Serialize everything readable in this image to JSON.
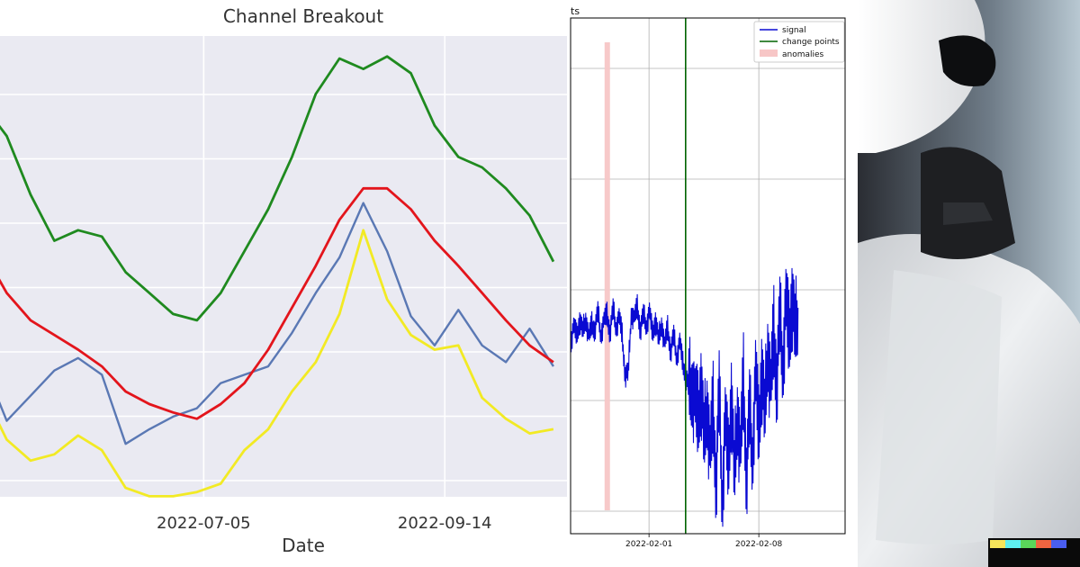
{
  "chart_data": [
    {
      "type": "line",
      "title": "Channel Breakout",
      "xlabel": "Date",
      "ylabel": "",
      "xticks": [
        "2022-07-05",
        "2022-09-14"
      ],
      "grid": true,
      "style": "seaborn-darkgrid",
      "colors": {
        "price": "#5a78b4",
        "upper": "#1f8a1f",
        "middle": "#e3151c",
        "lower": "#f2ea24"
      },
      "x": [
        "2022-05-01",
        "2022-05-08",
        "2022-05-15",
        "2022-05-22",
        "2022-05-29",
        "2022-06-05",
        "2022-06-12",
        "2022-06-19",
        "2022-06-26",
        "2022-07-03",
        "2022-07-10",
        "2022-07-17",
        "2022-07-24",
        "2022-07-31",
        "2022-08-07",
        "2022-08-14",
        "2022-08-21",
        "2022-08-28",
        "2022-09-04",
        "2022-09-11",
        "2022-09-18",
        "2022-09-25",
        "2022-10-02",
        "2022-10-09",
        "2022-10-16"
      ],
      "series": [
        {
          "values": [
            0.72,
            0.44,
            0.56,
            0.68,
            0.74,
            0.66,
            0.33,
            0.4,
            0.46,
            0.5,
            0.62,
            0.66,
            0.7,
            0.86,
            1.05,
            1.22,
            1.48,
            1.25,
            0.94,
            0.8,
            0.97,
            0.8,
            0.72,
            0.88,
            0.7
          ]
        },
        {
          "values": [
            1.95,
            1.8,
            1.52,
            1.3,
            1.35,
            1.32,
            1.15,
            1.05,
            0.95,
            0.92,
            1.05,
            1.25,
            1.45,
            1.7,
            2.0,
            2.17,
            2.12,
            2.18,
            2.1,
            1.85,
            1.7,
            1.65,
            1.55,
            1.42,
            1.2
          ]
        },
        {
          "values": [
            1.25,
            1.05,
            0.92,
            0.85,
            0.78,
            0.7,
            0.58,
            0.52,
            0.48,
            0.45,
            0.52,
            0.62,
            0.78,
            0.98,
            1.18,
            1.4,
            1.55,
            1.55,
            1.45,
            1.3,
            1.18,
            1.05,
            0.92,
            0.8,
            0.72
          ]
        },
        {
          "values": [
            0.58,
            0.35,
            0.25,
            0.28,
            0.37,
            0.3,
            0.12,
            0.08,
            0.08,
            0.1,
            0.14,
            0.3,
            0.4,
            0.58,
            0.72,
            0.95,
            1.35,
            1.02,
            0.85,
            0.78,
            0.8,
            0.55,
            0.45,
            0.38,
            0.4
          ]
        }
      ]
    },
    {
      "type": "line",
      "title_fragment": "ts",
      "xticks": [
        "2022-02-01",
        "2022-02-08"
      ],
      "grid": true,
      "legend": {
        "placement": "top-right",
        "entries": [
          "signal",
          "change points",
          "anomalies"
        ]
      },
      "colors": {
        "signal": "#0a0ad2",
        "change_points": "#006400",
        "anomalies": "#f7c6c6"
      },
      "change_points": [
        "2022-02-03 08:00"
      ],
      "anomalies": [
        [
          "2022-01-29 04:00",
          "2022-01-29 12:00"
        ]
      ],
      "series": [
        {
          "name": "signal",
          "x_start": "2022-01-27",
          "x_end": "2022-02-10 12:00",
          "values": [
            0.02,
            0.2,
            0.1,
            0.28,
            0.14,
            0.3,
            0.08,
            0.22,
            0.18,
            0.35,
            0.12,
            0.26,
            0.32,
            0.15,
            0.38,
            0.2,
            0.3,
            0.1,
            -0.3,
            -0.3,
            0.35,
            0.28,
            0.4,
            0.18,
            0.32,
            0.22,
            0.36,
            0.12,
            0.28,
            0.05,
            0.25,
            0.0,
            0.18,
            -0.05,
            0.1,
            -0.12,
            0.04,
            -0.2,
            -0.3,
            -0.48,
            -0.38,
            -0.6,
            -0.8,
            -0.35,
            -1.05,
            -0.55,
            -1.2,
            -0.7,
            -1.4,
            -0.5,
            -1.6,
            -0.8,
            -1.3,
            -0.45,
            -1.45,
            -0.62,
            -1.2,
            -0.4,
            -1.35,
            -0.7,
            -1.15,
            -0.3,
            -0.95,
            -0.2,
            -0.8,
            0.05,
            -0.5,
            0.1,
            -0.35,
            0.28,
            -0.18,
            0.45,
            0.05,
            0.55,
            0.1,
            0.4
          ]
        }
      ]
    }
  ],
  "illustration": {
    "subject": "white-humanoid-robot",
    "watermark_colors": [
      "#f7e65a",
      "#5ef0f0",
      "#5ad65a",
      "#f06440",
      "#4a5ef0"
    ]
  }
}
